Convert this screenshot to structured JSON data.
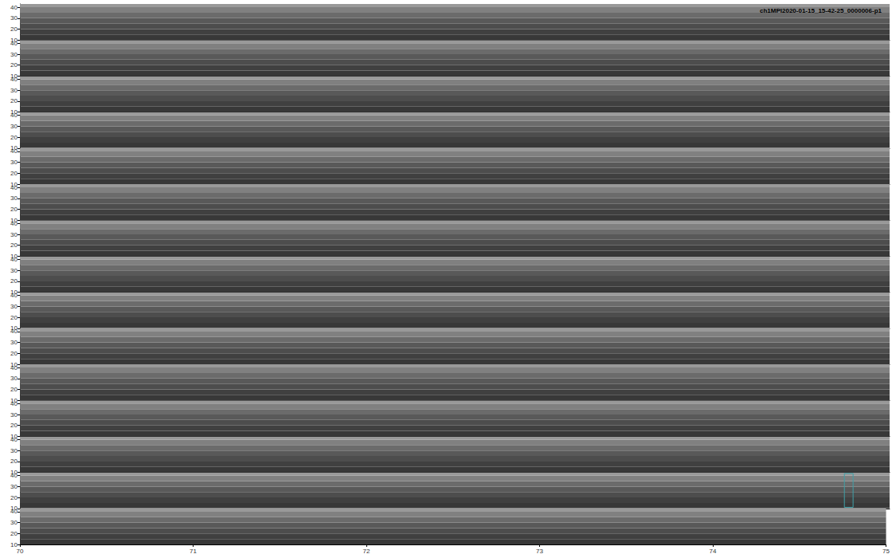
{
  "chart_data": {
    "type": "spectrogram",
    "title": "ch1MPI2020-01-15_15-42-25_0000006-p1",
    "panels": 15,
    "xlim": [
      70,
      75
    ],
    "xticks": [
      70,
      71,
      72,
      73,
      74,
      75
    ],
    "ylim": [
      10,
      43
    ],
    "yticks": [
      10,
      20,
      30,
      40
    ],
    "band_edges": [
      10,
      15,
      20,
      25,
      30,
      35,
      40,
      43
    ],
    "levels": [
      0.22,
      0.25,
      0.3,
      0.35,
      0.42,
      0.5,
      0.6
    ],
    "level_range": [
      0,
      1
    ],
    "tick_labels": true,
    "boxes": [
      {
        "panel": 14,
        "x": [
          74.74,
          74.79
        ],
        "y": [
          11,
          42
        ],
        "color": "#3fa0a8"
      }
    ]
  }
}
